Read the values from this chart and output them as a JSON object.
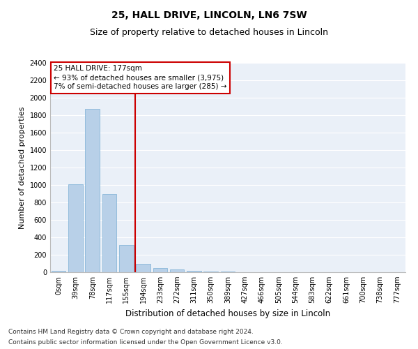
{
  "title": "25, HALL DRIVE, LINCOLN, LN6 7SW",
  "subtitle": "Size of property relative to detached houses in Lincoln",
  "xlabel": "Distribution of detached houses by size in Lincoln",
  "ylabel": "Number of detached properties",
  "bar_color": "#b8d0e8",
  "bar_edge_color": "#7aafd4",
  "categories": [
    "0sqm",
    "39sqm",
    "78sqm",
    "117sqm",
    "155sqm",
    "194sqm",
    "233sqm",
    "272sqm",
    "311sqm",
    "350sqm",
    "389sqm",
    "427sqm",
    "466sqm",
    "505sqm",
    "544sqm",
    "583sqm",
    "622sqm",
    "661sqm",
    "700sqm",
    "738sqm",
    "777sqm"
  ],
  "values": [
    20,
    1005,
    1870,
    900,
    310,
    100,
    50,
    30,
    20,
    10,
    5,
    3,
    2,
    1,
    1,
    0,
    0,
    0,
    0,
    0,
    0
  ],
  "ylim": [
    0,
    2400
  ],
  "yticks": [
    0,
    200,
    400,
    600,
    800,
    1000,
    1200,
    1400,
    1600,
    1800,
    2000,
    2200,
    2400
  ],
  "property_size": 177,
  "annotation_line1": "25 HALL DRIVE: 177sqm",
  "annotation_line2": "← 93% of detached houses are smaller (3,975)",
  "annotation_line3": "7% of semi-detached houses are larger (285) →",
  "vline_color": "#cc0000",
  "annotation_box_color": "#cc0000",
  "footnote1": "Contains HM Land Registry data © Crown copyright and database right 2024.",
  "footnote2": "Contains public sector information licensed under the Open Government Licence v3.0.",
  "bin_width": 39,
  "background_color": "#eaf0f8",
  "grid_color": "#ffffff",
  "title_fontsize": 10,
  "subtitle_fontsize": 9,
  "xlabel_fontsize": 8.5,
  "ylabel_fontsize": 8,
  "tick_fontsize": 7,
  "annotation_fontsize": 7.5,
  "footnote_fontsize": 6.5
}
